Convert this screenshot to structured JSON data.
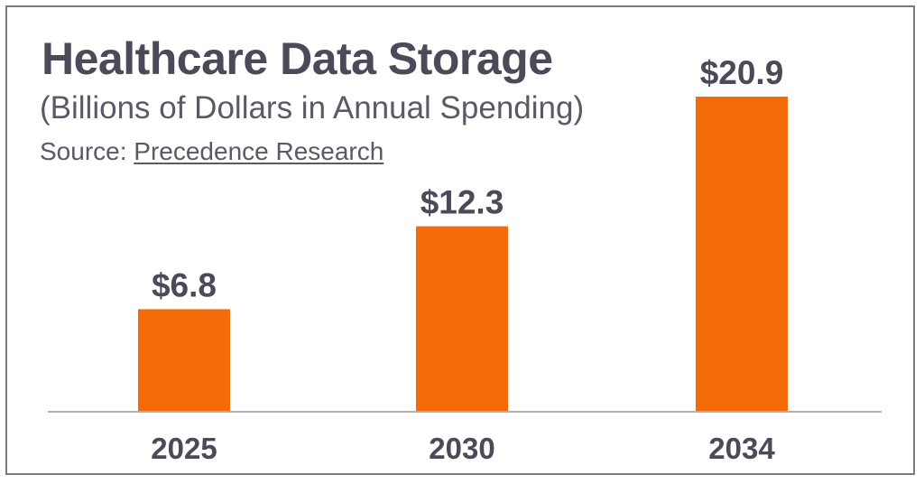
{
  "colors": {
    "bar": "#f56a08",
    "text": "#4a4a58",
    "border": "#7a7a7a",
    "baseline": "#b0b0b0"
  },
  "chart_data": {
    "type": "bar",
    "title": "Healthcare Data Storage",
    "subtitle": "(Billions of Dollars in Annual Spending)",
    "source_prefix": "Source: ",
    "source_link": "Precedence Research",
    "categories": [
      "2025",
      "2030",
      "2034"
    ],
    "values": [
      6.8,
      12.3,
      20.9
    ],
    "value_labels": [
      "$6.8",
      "$12.3",
      "$20.9"
    ],
    "xlabel": "",
    "ylabel": "",
    "ylim": [
      0,
      20.9
    ],
    "grid": false,
    "legend": "none"
  }
}
